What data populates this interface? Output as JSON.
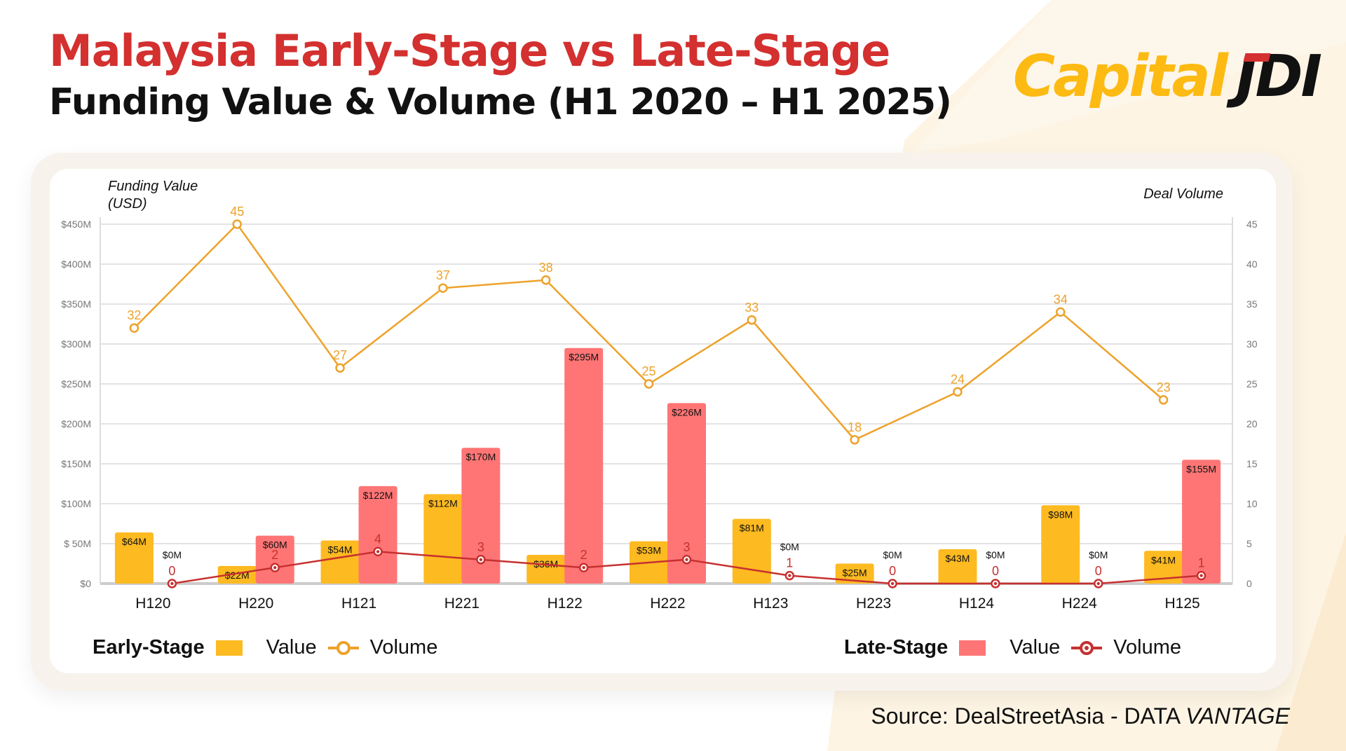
{
  "header": {
    "title": "Malaysia Early-Stage vs Late-Stage",
    "subtitle": "Funding Value & Volume (H1 2020 – H1 2025)"
  },
  "logo": {
    "text_a": "Capital",
    "text_b": "JDI"
  },
  "source": {
    "prefix": "Source: DealStreetAsia - DATA ",
    "emph": "VANTAGE"
  },
  "colors": {
    "early_bar": "#FDBA21",
    "late_bar": "#FF7575",
    "early_line": "#EDA22A",
    "late_line": "#C73030",
    "title": "#D3302F"
  },
  "legend": {
    "early": {
      "label": "Early-Stage",
      "value": "Value",
      "volume": "Volume"
    },
    "late": {
      "label": "Late-Stage",
      "value": "Value",
      "volume": "Volume"
    }
  },
  "chart_data": {
    "type": "bar+line",
    "categories": [
      "H120",
      "H220",
      "H121",
      "H221",
      "H122",
      "H222",
      "H123",
      "H223",
      "H124",
      "H224",
      "H125"
    ],
    "y_left": {
      "label": "Funding Value (USD)",
      "range": [
        0,
        450
      ],
      "ticks": [
        "$0",
        "$ 50M",
        "$100M",
        "$150M",
        "$200M",
        "$250M",
        "$300M",
        "$350M",
        "$400M",
        "$450M"
      ]
    },
    "y_right": {
      "label": "Deal Volume",
      "range": [
        0,
        45
      ],
      "ticks": [
        "0",
        "5",
        "10",
        "15",
        "20",
        "25",
        "30",
        "35",
        "40",
        "45"
      ]
    },
    "grid": true,
    "legend_position": "bottom",
    "series": [
      {
        "name": "Early-Stage Value",
        "type": "bar",
        "axis": "left",
        "values": [
          64,
          22,
          54,
          112,
          36,
          53,
          81,
          25,
          43,
          98,
          41
        ],
        "labels": [
          "$64M",
          "$22M",
          "$54M",
          "$112M",
          "$36M",
          "$53M",
          "$81M",
          "$25M",
          "$43M",
          "$98M",
          "$41M"
        ]
      },
      {
        "name": "Late-Stage Value",
        "type": "bar",
        "axis": "left",
        "values": [
          0,
          60,
          122,
          170,
          295,
          226,
          0,
          0,
          0,
          0,
          155
        ],
        "labels": [
          "$0M",
          "$60M",
          "$122M",
          "$170M",
          "$295M",
          "$226M",
          "$0M",
          "$0M",
          "$0M",
          "$0M",
          "$155M"
        ]
      },
      {
        "name": "Early-Stage Volume",
        "type": "line",
        "axis": "right",
        "values": [
          32,
          45,
          27,
          37,
          38,
          25,
          33,
          18,
          24,
          34,
          23
        ]
      },
      {
        "name": "Late-Stage Volume",
        "type": "line",
        "axis": "right",
        "values": [
          0,
          2,
          4,
          3,
          2,
          3,
          1,
          0,
          0,
          0,
          1
        ]
      }
    ]
  }
}
